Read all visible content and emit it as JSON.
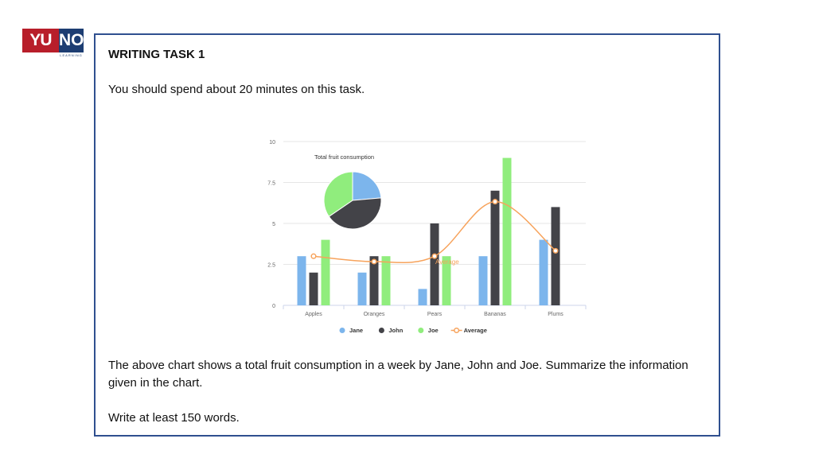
{
  "logo": {
    "left_text": "YU",
    "right_text": "NO",
    "sub_text": "LEARNING"
  },
  "task": {
    "title": "WRITING TASK 1",
    "time_instruction": "You should spend about 20 minutes on this task.",
    "prompt": "The above chart shows a total fruit consumption in a week by Jane, John and Joe. Summarize the information given in the chart.",
    "word_instruction": "Write at least 150 words."
  },
  "colors": {
    "jane": "#7cb5ec",
    "john": "#434348",
    "joe": "#90ed7d",
    "average": "#f7a35c",
    "frame": "#2f4f8f"
  },
  "chart_data": [
    {
      "type": "bar",
      "categories": [
        "Apples",
        "Oranges",
        "Pears",
        "Bananas",
        "Plums"
      ],
      "series": [
        {
          "name": "Jane",
          "values": [
            3,
            2,
            1,
            3,
            4
          ]
        },
        {
          "name": "John",
          "values": [
            2,
            3,
            5,
            7,
            6
          ]
        },
        {
          "name": "Joe",
          "values": [
            4,
            3,
            3,
            9,
            0
          ]
        }
      ],
      "line_series": {
        "name": "Average",
        "values": [
          3,
          2.67,
          3,
          6.33,
          3.33
        ],
        "label": "Average"
      },
      "yticks": [
        "0",
        "2.5",
        "5",
        "7.5",
        "10"
      ],
      "ylim": [
        0,
        10
      ],
      "legend": [
        "Jane",
        "John",
        "Joe",
        "Average"
      ],
      "legend_position": "bottom",
      "grid": true
    },
    {
      "type": "pie",
      "title": "Total fruit consumption",
      "labels": [
        "Jane",
        "John",
        "Joe"
      ],
      "values": [
        13,
        23,
        19
      ]
    }
  ]
}
